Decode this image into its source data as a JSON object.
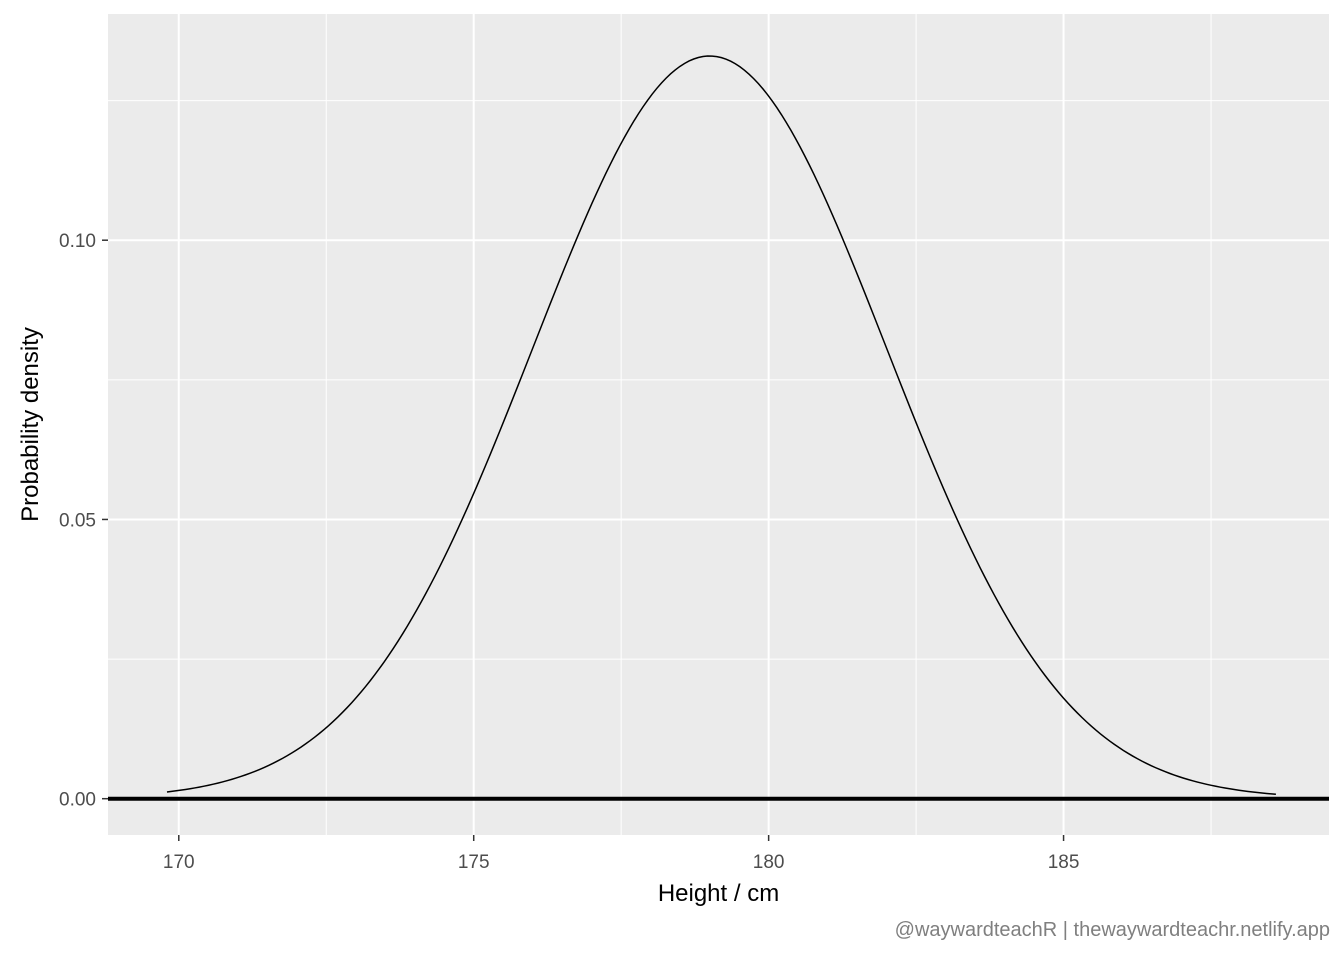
{
  "chart_data": {
    "type": "line",
    "xlabel": "Height / cm",
    "ylabel": "Probability density",
    "xlim": [
      168.8,
      189.5
    ],
    "ylim": [
      -0.0065,
      0.1405
    ],
    "x_ticks": [
      170,
      175,
      180,
      185
    ],
    "x_tick_labels": [
      "170",
      "175",
      "180",
      "185"
    ],
    "y_ticks": [
      0.0,
      0.05,
      0.1
    ],
    "y_tick_labels": [
      "0.00",
      "0.05",
      "0.10"
    ],
    "series": [
      {
        "type": "normal-density",
        "mean": 179.0,
        "sd": 3.0,
        "x_range": [
          169.8,
          188.6
        ],
        "color": "#000000"
      }
    ],
    "baseline": {
      "y": 0.0,
      "color": "#000000"
    },
    "grid": true,
    "panel_background": "#ebebeb",
    "grid_color": "#ffffff"
  },
  "caption": "@waywardteachR | thewaywardteachr.netlify.app"
}
